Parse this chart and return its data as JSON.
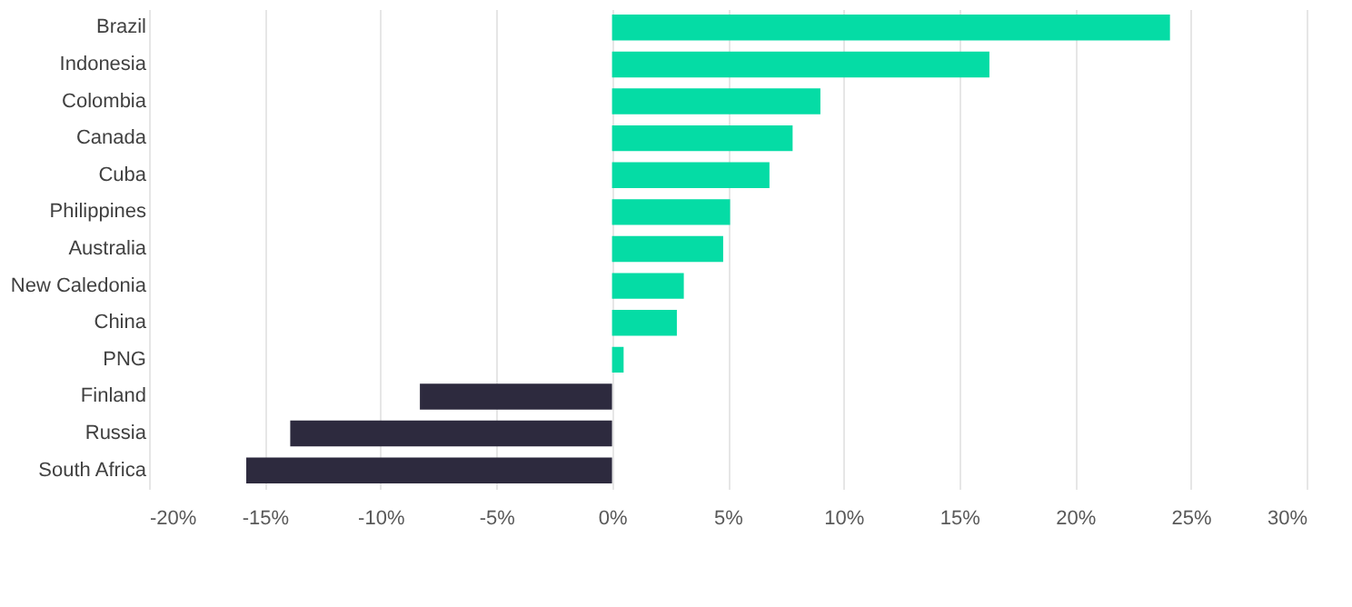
{
  "chart_data": {
    "type": "bar",
    "orientation": "horizontal",
    "categories": [
      "Brazil",
      "Indonesia",
      "Colombia",
      "Canada",
      "Cuba",
      "Philippines",
      "Australia",
      "New Caledonia",
      "China",
      "PNG",
      "Finland",
      "Russia",
      "South Africa"
    ],
    "values": [
      24.1,
      16.3,
      9.0,
      7.8,
      6.8,
      5.1,
      4.8,
      3.1,
      2.8,
      0.5,
      -8.3,
      -13.9,
      -15.8
    ],
    "colors": [
      "#05dca5",
      "#05dca5",
      "#05dca5",
      "#05dca5",
      "#05dca5",
      "#05dca5",
      "#05dca5",
      "#05dca5",
      "#05dca5",
      "#05dca5",
      "#2d2a3e",
      "#2d2a3e",
      "#2d2a3e"
    ],
    "xlim": [
      -20,
      30
    ],
    "xticks": [
      {
        "value": -20,
        "label": "-20%"
      },
      {
        "value": -15,
        "label": "-15%"
      },
      {
        "value": -10,
        "label": "-10%"
      },
      {
        "value": -5,
        "label": "-5%"
      },
      {
        "value": 0,
        "label": "0%"
      },
      {
        "value": 5,
        "label": "5%"
      },
      {
        "value": 10,
        "label": "10%"
      },
      {
        "value": 15,
        "label": "15%"
      },
      {
        "value": 20,
        "label": "20%"
      },
      {
        "value": 25,
        "label": "25%"
      },
      {
        "value": 30,
        "label": "30%"
      }
    ],
    "grid": "x"
  }
}
